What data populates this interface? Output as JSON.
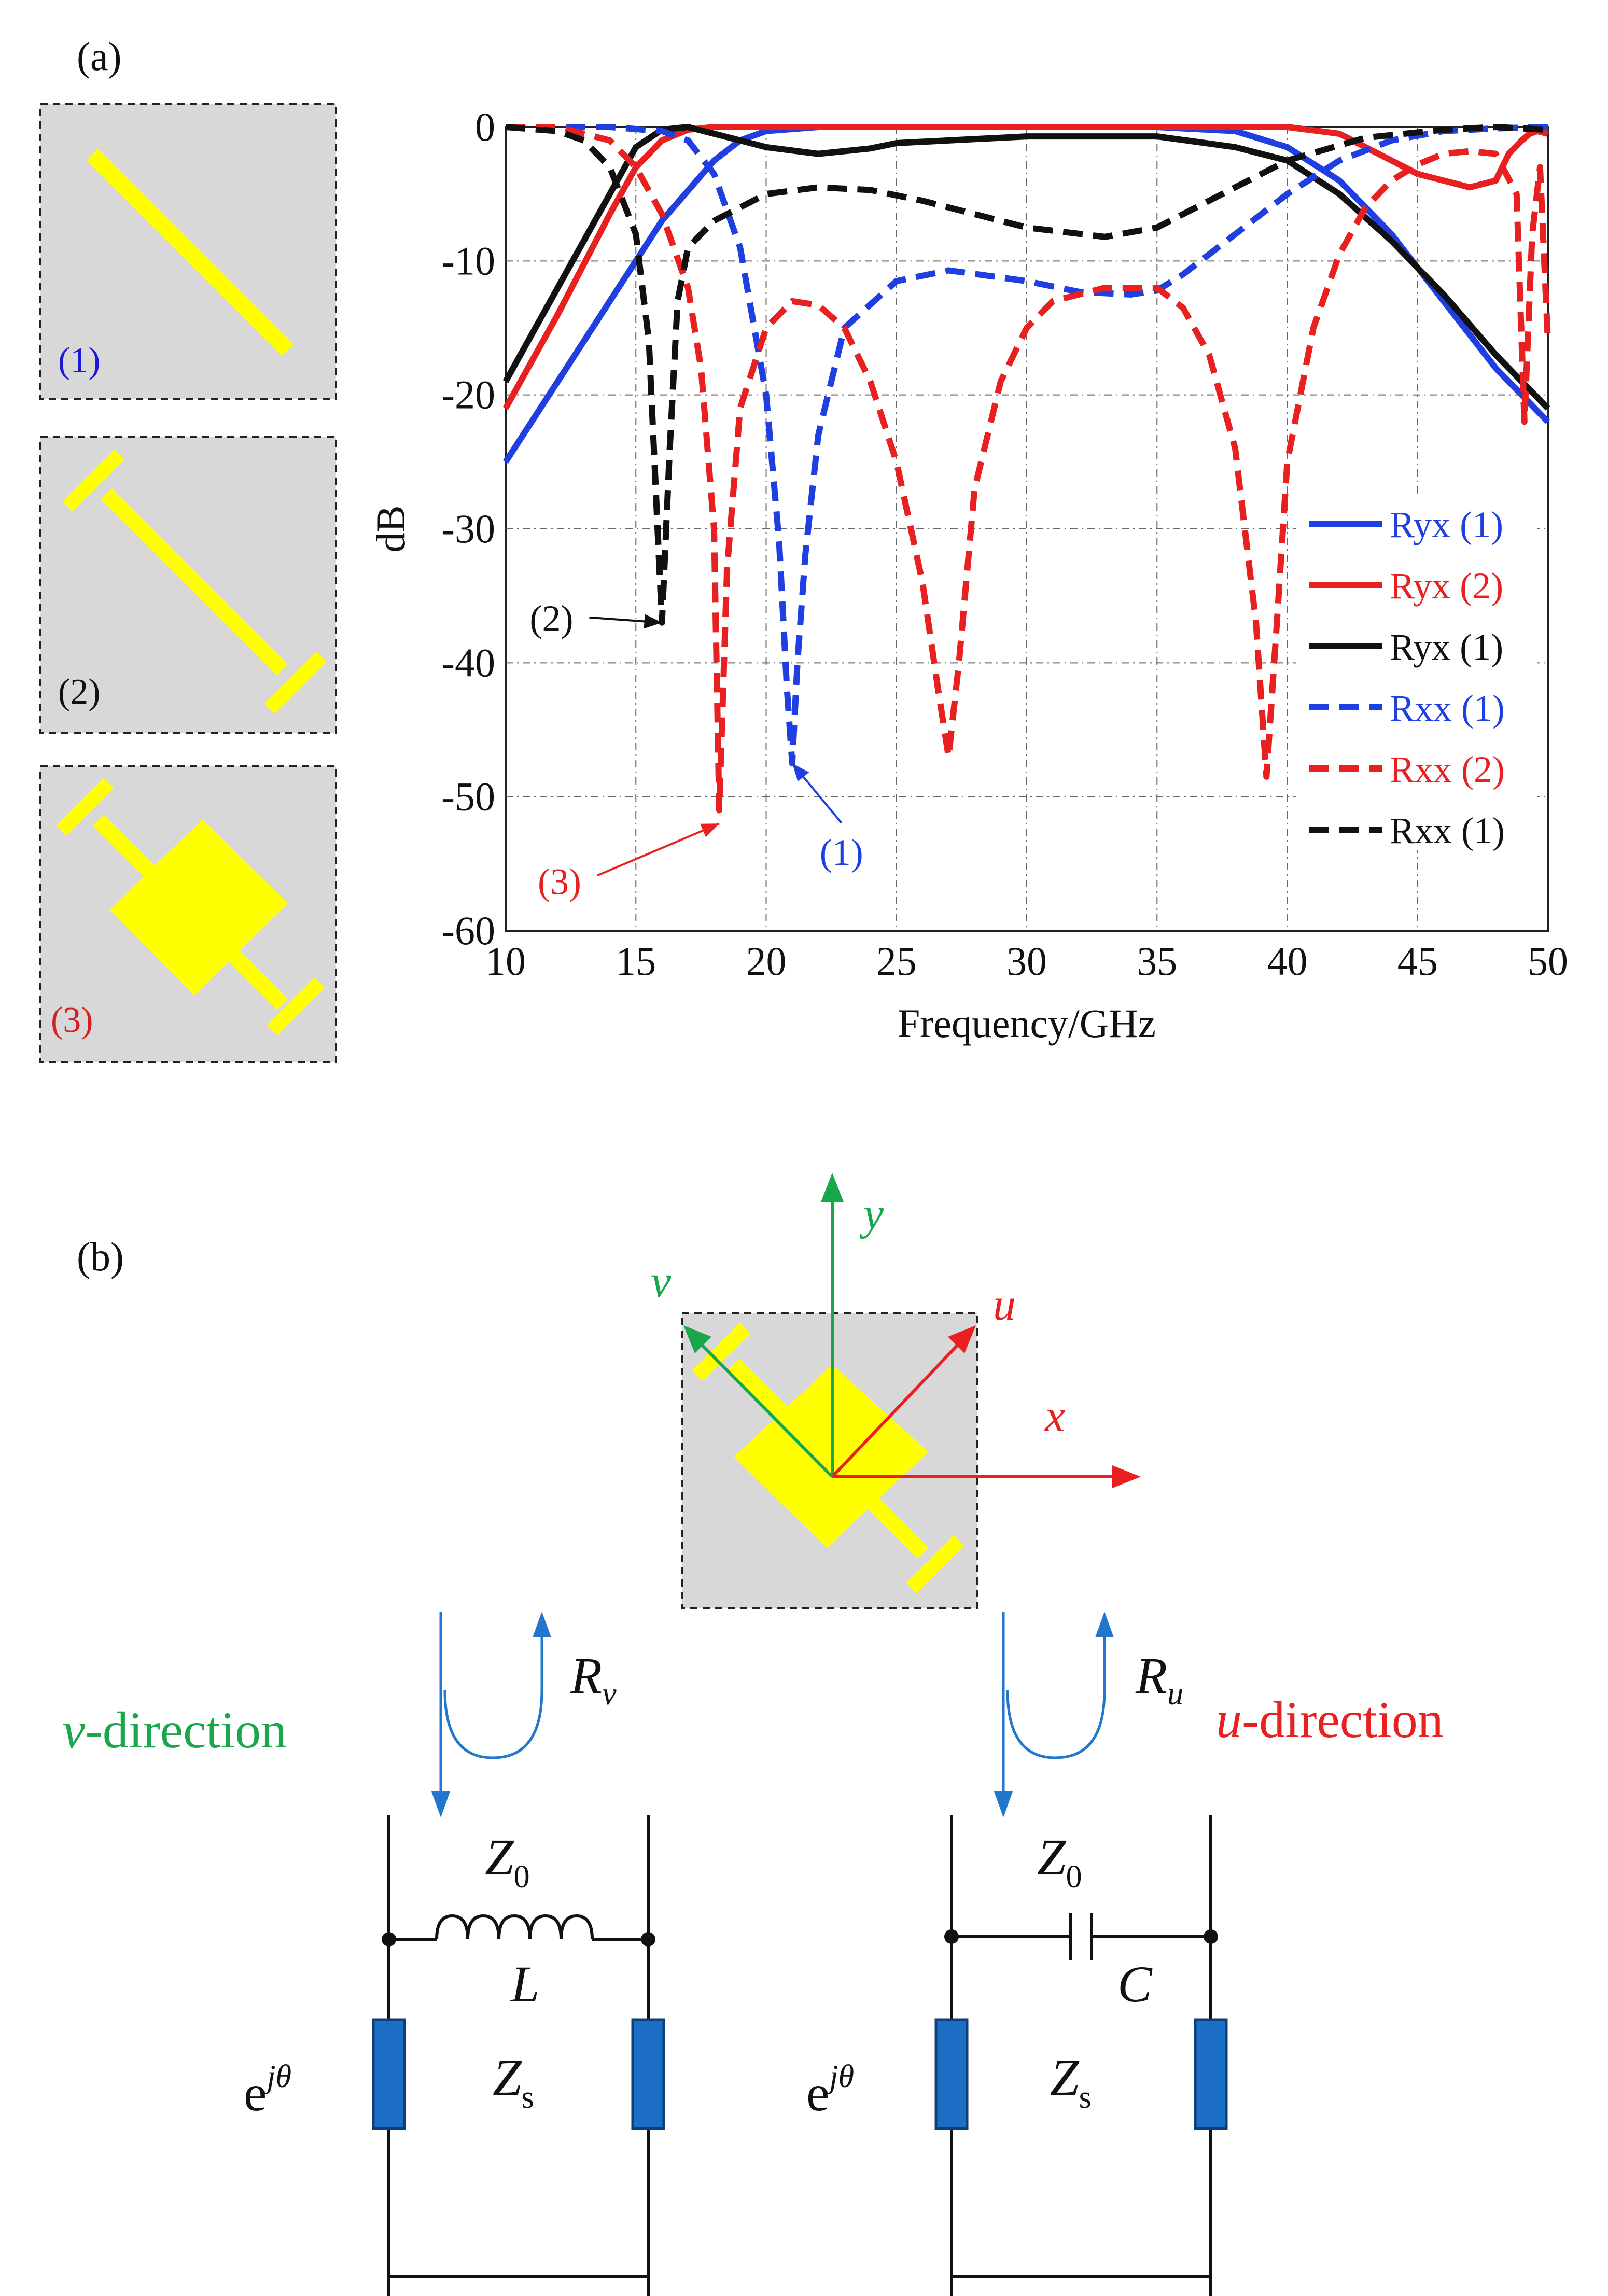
{
  "panel_a": {
    "label": "(a)",
    "cells": [
      {
        "label": "(1)",
        "label_color": "#1a1ad6"
      },
      {
        "label": "(2)",
        "label_color": "#111111"
      },
      {
        "label": "(3)",
        "label_color": "#d42020"
      }
    ]
  },
  "chart_data": {
    "type": "line",
    "title": "",
    "xlabel": "Frequency/GHz",
    "ylabel": "dB",
    "xlim": [
      10,
      50
    ],
    "ylim": [
      -60,
      0
    ],
    "xticks": [
      10,
      15,
      20,
      25,
      30,
      35,
      40,
      45,
      50
    ],
    "yticks": [
      0,
      -10,
      -20,
      -30,
      -40,
      -50,
      -60
    ],
    "grid": true,
    "legend_position": "right",
    "series": [
      {
        "name": "Ryx (1)",
        "color": "#1f3fe0",
        "dash": "solid",
        "x": [
          10,
          12,
          14,
          16,
          18,
          19,
          20,
          22,
          25,
          30,
          35,
          38,
          40,
          42,
          44,
          46,
          48,
          50
        ],
        "y": [
          -25,
          -19,
          -13,
          -7,
          -2.5,
          -1,
          -0.3,
          0,
          0,
          0,
          0,
          -0.3,
          -1.5,
          -4,
          -8,
          -13,
          -18,
          -22
        ]
      },
      {
        "name": "Ryx (2)",
        "color": "#e82020",
        "dash": "solid",
        "x": [
          10,
          12,
          14,
          15,
          16,
          17,
          18,
          19,
          20,
          25,
          30,
          35,
          40,
          42,
          44,
          45,
          46,
          47,
          48,
          48.5,
          49,
          49.3,
          49.6,
          50
        ],
        "y": [
          -21,
          -14,
          -6.5,
          -3,
          -1,
          -0.2,
          0,
          0,
          0,
          0,
          0,
          0,
          0,
          -0.5,
          -2.5,
          -3.5,
          -4,
          -4.5,
          -4,
          -2,
          -1,
          -0.5,
          -0.3,
          -0.5
        ]
      },
      {
        "name": "Ryx (1)",
        "color": "#111111",
        "dash": "solid",
        "x": [
          10,
          12,
          14,
          15,
          16,
          17,
          18,
          19,
          20,
          22,
          24,
          25,
          30,
          35,
          38,
          40,
          42,
          44,
          46,
          48,
          50
        ],
        "y": [
          -19,
          -12,
          -5,
          -1.5,
          -0.2,
          0,
          -0.5,
          -1,
          -1.5,
          -2,
          -1.6,
          -1.2,
          -0.7,
          -0.7,
          -1.5,
          -2.5,
          -5,
          -8.5,
          -12.5,
          -17,
          -21
        ]
      },
      {
        "name": "Rxx (1)",
        "color": "#1f3fe0",
        "dash": "dashed",
        "x": [
          10,
          14,
          16,
          17,
          18,
          19,
          20,
          20.5,
          20.8,
          21,
          21.2,
          21.5,
          22,
          23,
          25,
          27,
          30,
          32,
          34,
          35,
          36,
          38,
          40,
          42,
          44,
          46,
          48,
          50
        ],
        "y": [
          0,
          0,
          -0.3,
          -1,
          -3.5,
          -9,
          -20,
          -31,
          -42,
          -47.5,
          -40,
          -32,
          -23,
          -15,
          -11.5,
          -10.7,
          -11.5,
          -12.3,
          -12.5,
          -12.2,
          -11,
          -8,
          -5,
          -2.5,
          -1,
          -0.3,
          -0.1,
          0
        ]
      },
      {
        "name": "Rxx (2)",
        "color": "#e82020",
        "dash": "dashed",
        "x": [
          10,
          12,
          14,
          15,
          16,
          17,
          17.5,
          18,
          18.2,
          18.5,
          19,
          20,
          21,
          22,
          23,
          24,
          25,
          26,
          26.6,
          27,
          27.4,
          28,
          29,
          30,
          31,
          33,
          35,
          36,
          37,
          38,
          38.8,
          39.2,
          39.6,
          40,
          41,
          42,
          43,
          44,
          45,
          46,
          47,
          48,
          48.8,
          49.1,
          49.4,
          49.7,
          50
        ],
        "y": [
          0,
          0,
          -1,
          -3,
          -6.5,
          -12,
          -18,
          -30,
          -51,
          -33,
          -21,
          -15,
          -13,
          -13.3,
          -15,
          -19,
          -25,
          -34,
          -42,
          -47,
          -40,
          -27,
          -19,
          -15,
          -13,
          -12,
          -12,
          -13.5,
          -17,
          -24,
          -37,
          -48.5,
          -37,
          -25,
          -15,
          -9.5,
          -6,
          -4,
          -2.8,
          -2,
          -1.8,
          -2,
          -5,
          -22,
          -8,
          -3,
          -16
        ]
      },
      {
        "name": "Rxx (1)",
        "color": "#111111",
        "dash": "dashed",
        "x": [
          10,
          12,
          13,
          14,
          15,
          15.5,
          16,
          16.3,
          16.6,
          17,
          18,
          19,
          20,
          22,
          24,
          26,
          28,
          30,
          33,
          35,
          37,
          40,
          43,
          46,
          48,
          50
        ],
        "y": [
          0,
          -0.3,
          -1,
          -3,
          -8,
          -16,
          -37,
          -24,
          -13,
          -9,
          -7,
          -6,
          -5,
          -4.5,
          -4.7,
          -5.5,
          -6.5,
          -7.5,
          -8.2,
          -7.5,
          -5.5,
          -2.5,
          -0.8,
          -0.2,
          0,
          -0.2
        ]
      }
    ],
    "annotations": [
      {
        "text": "(2)",
        "color": "#111111",
        "x": 16,
        "y": -37
      },
      {
        "text": "(3)",
        "color": "#e82020",
        "x": 18.2,
        "y": -52
      },
      {
        "text": "(1)",
        "color": "#1f3fe0",
        "x": 21,
        "y": -47.5
      }
    ]
  },
  "panel_b": {
    "label": "(b)",
    "axes": {
      "y": "y",
      "x": "x",
      "u": "u",
      "v": "v"
    },
    "reflection_v": {
      "R": "R",
      "sub": "v"
    },
    "reflection_u": {
      "R": "R",
      "sub": "u"
    },
    "direction_v": {
      "letter": "v",
      "rest": "-direction"
    },
    "direction_u": {
      "letter": "u",
      "rest": "-direction"
    },
    "left_circuit": {
      "z0": "Z",
      "z0_sub": "0",
      "element": "L",
      "zs": "Z",
      "zs_sub": "s",
      "phase_base": "e",
      "phase_sup": "jθ"
    },
    "right_circuit": {
      "z0": "Z",
      "z0_sub": "0",
      "element": "C",
      "zs": "Z",
      "zs_sub": "s",
      "phase_base": "e",
      "phase_sup": "jθ"
    },
    "colors": {
      "green": "#1aa64a",
      "red": "#e82020",
      "blue": "#2277cc",
      "patch": "#ffff00",
      "cell_bg": "#d8d8d8",
      "resistor": "#1c6fc4"
    }
  }
}
